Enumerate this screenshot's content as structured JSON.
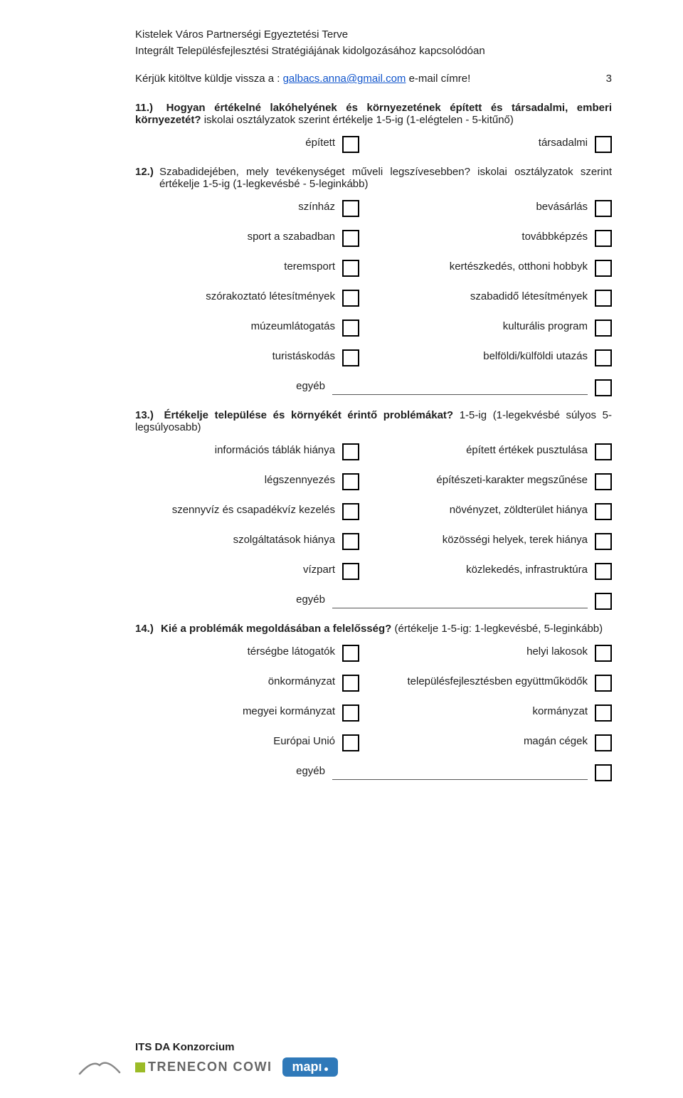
{
  "header": {
    "line1": "Kistelek Város Partnerségi Egyeztetési Terve",
    "line2": "Integrált Településfejlesztési Stratégiájának kidolgozásához kapcsolódóan"
  },
  "instruction": {
    "pre": "Kérjük kitöltve küldje vissza a : ",
    "email": "galbacs.anna@gmail.com",
    "post": " e-mail címre!",
    "page": "3"
  },
  "q11": {
    "num": "11.)",
    "text_bold": "Hogyan értékelné lakóhelyének és környezetének épített és társadalmi, emberi környezetét?",
    "text_plain": " iskolai osztályzatok szerint értékelje 1-5-ig (1-elégtelen - 5-kitűnő)",
    "left": "épített",
    "right": "társadalmi"
  },
  "q12": {
    "num": "12.)",
    "text_bold": "Szabadidejében, mely tevékenységet műveli legszívesebben?",
    "text_plain": " iskolai osztályzatok szerint értékelje 1-5-ig (1-legkevésbé - 5-leginkább)",
    "rows": [
      {
        "l": "színház",
        "r": "bevásárlás"
      },
      {
        "l": "sport a szabadban",
        "r": "továbbképzés"
      },
      {
        "l": "teremsport",
        "r": "kertészkedés, otthoni hobbyk"
      },
      {
        "l": "szórakoztató létesítmények",
        "r": "szabadidő létesítmények"
      },
      {
        "l": "múzeumlátogatás",
        "r": "kulturális program"
      },
      {
        "l": "turistáskodás",
        "r": "belföldi/külföldi utazás"
      }
    ],
    "egyeb": "egyéb"
  },
  "q13": {
    "num": "13.)",
    "text_bold": "Értékelje települése és környékét érintő problémákat?",
    "text_plain": " 1-5-ig (1-legekvésbé súlyos 5-legsúlyosabb)",
    "rows": [
      {
        "l": "információs táblák hiánya",
        "r": "épített értékek pusztulása"
      },
      {
        "l": "légszennyezés",
        "r": "építészeti-karakter megszűnése"
      },
      {
        "l": "szennyvíz és csapadékvíz kezelés",
        "r": "növényzet, zöldterület hiánya"
      },
      {
        "l": "szolgáltatások hiánya",
        "r": "közösségi helyek, terek hiánya"
      },
      {
        "l": "vízpart",
        "r": "közlekedés, infrastruktúra"
      }
    ],
    "egyeb": "egyéb"
  },
  "q14": {
    "num": "14.)",
    "text_bold": "Kié a problémák megoldásában a felelősség?",
    "text_plain": " (értékelje 1-5-ig: 1-legkevésbé, 5-leginkább)",
    "rows": [
      {
        "l": "térségbe látogatók",
        "r": "helyi lakosok"
      },
      {
        "l": "önkormányzat",
        "r": "településfejlesztésben együttműködők"
      },
      {
        "l": "megyei kormányzat",
        "r": "kormányzat"
      },
      {
        "l": "Európai Unió",
        "r": "magán cégek"
      }
    ],
    "egyeb": "egyéb"
  },
  "footer": {
    "its": "ITS DA Konzorcium",
    "trenecon": "TRENECON COWI",
    "mapi": "mapı"
  },
  "colors": {
    "text": "#202020",
    "link": "#1155cc",
    "box_border": "#000000",
    "trenecon_grey": "#666666",
    "trenecon_green": "#9bbb27",
    "mapi_blue": "#2f79b9"
  }
}
